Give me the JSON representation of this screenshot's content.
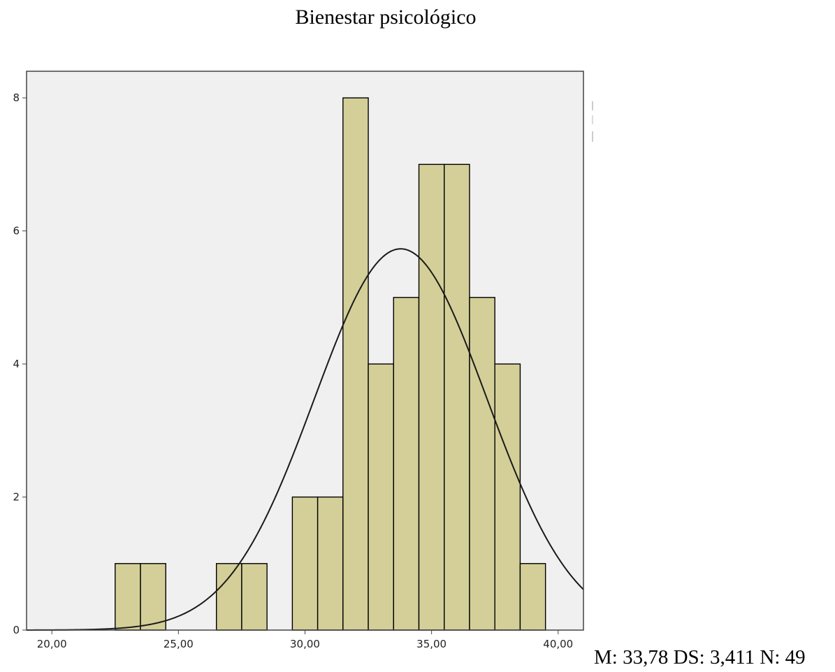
{
  "chart_data": {
    "type": "bar",
    "title": "Bienestar psicológico",
    "xlabel": "",
    "ylabel": "",
    "bin_width": 1,
    "bins": [
      {
        "x0": 22.5,
        "x1": 23.5,
        "count": 1
      },
      {
        "x0": 23.5,
        "x1": 24.5,
        "count": 1
      },
      {
        "x0": 26.5,
        "x1": 27.5,
        "count": 1
      },
      {
        "x0": 27.5,
        "x1": 28.5,
        "count": 1
      },
      {
        "x0": 29.5,
        "x1": 30.5,
        "count": 2
      },
      {
        "x0": 30.5,
        "x1": 31.5,
        "count": 2
      },
      {
        "x0": 31.5,
        "x1": 32.5,
        "count": 8
      },
      {
        "x0": 32.5,
        "x1": 33.5,
        "count": 4
      },
      {
        "x0": 33.5,
        "x1": 34.5,
        "count": 5
      },
      {
        "x0": 34.5,
        "x1": 35.5,
        "count": 7
      },
      {
        "x0": 35.5,
        "x1": 36.5,
        "count": 7
      },
      {
        "x0": 36.5,
        "x1": 37.5,
        "count": 5
      },
      {
        "x0": 37.5,
        "x1": 38.5,
        "count": 4
      },
      {
        "x0": 38.5,
        "x1": 39.5,
        "count": 1
      }
    ],
    "xlim": [
      19,
      41
    ],
    "ylim": [
      0,
      8.4
    ],
    "x_ticks": [
      {
        "value": 20,
        "label": "20,00"
      },
      {
        "value": 25,
        "label": "25,00"
      },
      {
        "value": 30,
        "label": "30,00"
      },
      {
        "value": 35,
        "label": "35,00"
      },
      {
        "value": 40,
        "label": "40,00"
      }
    ],
    "y_ticks": [
      {
        "value": 0,
        "label": "0"
      },
      {
        "value": 2,
        "label": "2"
      },
      {
        "value": 4,
        "label": "4"
      },
      {
        "value": 6,
        "label": "6"
      },
      {
        "value": 8,
        "label": "8"
      }
    ],
    "normal_curve": {
      "mean": 33.78,
      "sd": 3.411,
      "n": 49
    },
    "grid": false,
    "bar_color": "#d4cf98",
    "plot_background": "#f0f0f0"
  },
  "stats_text": "M: 33,78 DS: 3,411 N: 49"
}
